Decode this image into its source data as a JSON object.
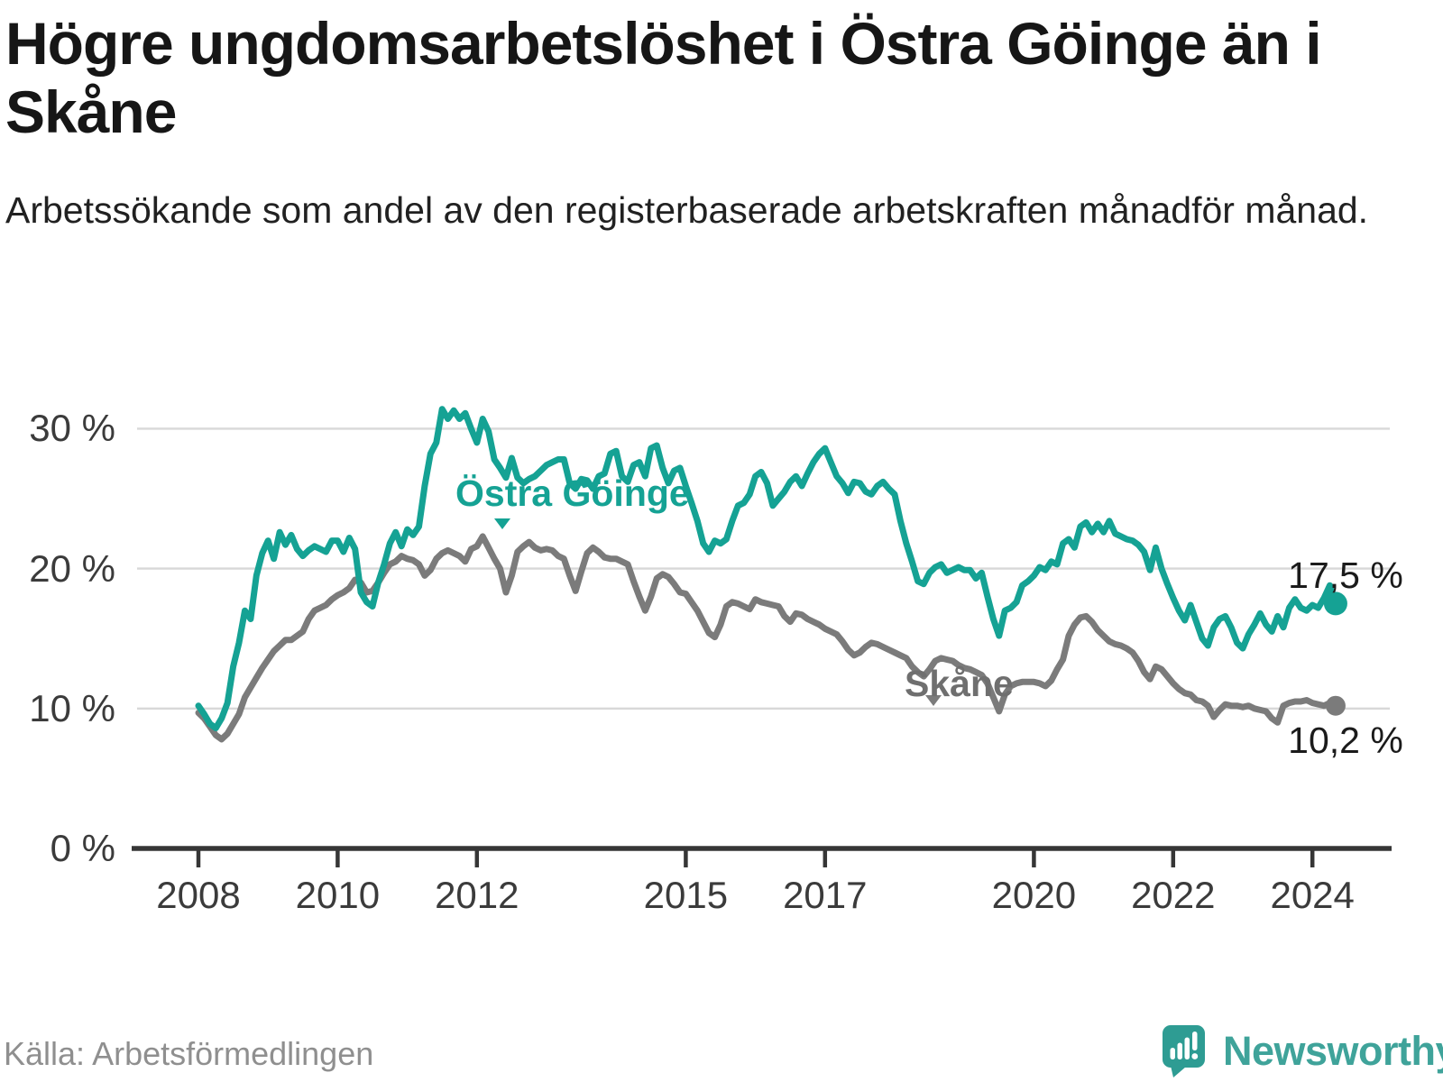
{
  "header": {
    "title_lines": [
      "Högre ungdomsarbetslöshet i Östra Göinge än i",
      "Skåne"
    ],
    "subtitle_lines": [
      "Arbetssökande som andel av den registerbaserade arbetskraften månad",
      "för månad."
    ]
  },
  "chart_data": {
    "type": "line",
    "title": "Högre ungdomsarbetslöshet i Östra Göinge än i Skåne",
    "subtitle": "Arbetssökande som andel av den registerbaserade arbetskraften månad för månad.",
    "unit": "%",
    "frequency": "monthly",
    "start": "2008-01",
    "end": "2024-05",
    "grid": true,
    "legend_position": "inline-labels",
    "x_axis": {
      "ticks": [
        {
          "year": 2008,
          "label": "2008"
        },
        {
          "year": 2010,
          "label": "2010"
        },
        {
          "year": 2012,
          "label": "2012"
        },
        {
          "year": 2015,
          "label": "2015"
        },
        {
          "year": 2017,
          "label": "2017"
        },
        {
          "year": 2020,
          "label": "2020"
        },
        {
          "year": 2022,
          "label": "2022"
        },
        {
          "year": 2024,
          "label": "2024"
        }
      ]
    },
    "y_axis": {
      "ticks": [
        {
          "value": 30,
          "label": "30 %"
        },
        {
          "value": 20,
          "label": "20 %"
        },
        {
          "value": 10,
          "label": "10 %"
        },
        {
          "value": 0,
          "label": "0 %"
        }
      ],
      "gridline_values": [
        30,
        20,
        10
      ],
      "ylim": [
        0,
        32.5
      ]
    },
    "series": [
      {
        "name": "Östra Göinge",
        "color": "#15A294",
        "end_label": "17,5 %",
        "end_value": 17.5,
        "values": [
          10.2,
          9.6,
          8.9,
          8.6,
          9.3,
          10.4,
          13.0,
          14.7,
          17.0,
          16.4,
          19.5,
          21.1,
          22.0,
          20.7,
          22.6,
          21.7,
          22.4,
          21.4,
          20.9,
          21.3,
          21.6,
          21.4,
          21.2,
          22.0,
          22.0,
          21.2,
          22.2,
          21.4,
          18.3,
          17.6,
          17.3,
          19.0,
          20.3,
          21.8,
          22.6,
          21.6,
          22.8,
          22.4,
          23.0,
          25.9,
          28.2,
          29.0,
          31.4,
          30.7,
          31.3,
          30.7,
          31.1,
          30.0,
          29.0,
          30.7,
          29.8,
          27.8,
          27.2,
          26.5,
          27.9,
          26.5,
          26.1,
          26.4,
          26.6,
          27.0,
          27.4,
          27.6,
          27.8,
          27.8,
          26.1,
          25.7,
          26.4,
          26.3,
          25.7,
          26.6,
          26.8,
          28.2,
          28.4,
          26.6,
          26.2,
          27.4,
          27.6,
          26.6,
          28.6,
          28.8,
          27.2,
          26.1,
          27.0,
          27.2,
          25.9,
          24.7,
          23.4,
          21.8,
          21.2,
          22.0,
          21.8,
          22.1,
          23.4,
          24.5,
          24.7,
          25.3,
          26.6,
          26.9,
          26.1,
          24.5,
          25.0,
          25.5,
          26.2,
          26.6,
          25.9,
          26.8,
          27.6,
          28.2,
          28.6,
          27.6,
          26.6,
          26.1,
          25.4,
          26.2,
          26.1,
          25.5,
          25.3,
          25.9,
          26.2,
          25.7,
          25.3,
          23.4,
          21.8,
          20.5,
          19.1,
          18.9,
          19.7,
          20.1,
          20.3,
          19.7,
          19.9,
          20.1,
          19.9,
          19.9,
          19.3,
          19.7,
          18.0,
          16.4,
          15.2,
          17.0,
          17.2,
          17.6,
          18.8,
          19.1,
          19.5,
          20.1,
          19.9,
          20.5,
          20.3,
          21.8,
          22.1,
          21.5,
          23.0,
          23.3,
          22.6,
          23.2,
          22.6,
          23.4,
          22.5,
          22.3,
          22.1,
          22.0,
          21.7,
          21.2,
          19.9,
          21.5,
          20.0,
          18.9,
          17.9,
          17.0,
          16.3,
          17.4,
          16.2,
          15.0,
          14.5,
          15.8,
          16.4,
          16.6,
          15.8,
          14.7,
          14.3,
          15.3,
          16.0,
          16.8,
          16.0,
          15.5,
          16.6,
          15.8,
          17.2,
          17.8,
          17.2,
          17.0,
          17.4,
          17.2,
          17.9,
          18.8,
          17.5
        ]
      },
      {
        "name": "Skåne",
        "color": "#7B7B7B",
        "end_label": "10,2 %",
        "end_value": 10.2,
        "values": [
          9.7,
          9.3,
          8.7,
          8.1,
          7.8,
          8.2,
          8.9,
          9.6,
          10.8,
          11.5,
          12.2,
          12.9,
          13.5,
          14.1,
          14.5,
          14.9,
          14.9,
          15.2,
          15.5,
          16.4,
          17.0,
          17.2,
          17.4,
          17.8,
          18.1,
          18.3,
          18.6,
          19.2,
          19.0,
          18.3,
          18.4,
          19.0,
          19.7,
          20.3,
          20.5,
          20.9,
          20.7,
          20.6,
          20.3,
          19.5,
          19.9,
          20.7,
          21.1,
          21.3,
          21.1,
          20.9,
          20.5,
          21.4,
          21.6,
          22.3,
          21.5,
          20.7,
          20.0,
          18.3,
          19.5,
          21.2,
          21.6,
          21.9,
          21.5,
          21.3,
          21.4,
          21.3,
          20.9,
          20.7,
          19.5,
          18.4,
          19.8,
          21.1,
          21.5,
          21.2,
          20.8,
          20.7,
          20.7,
          20.5,
          20.3,
          19.1,
          18.0,
          17.0,
          18.0,
          19.3,
          19.6,
          19.4,
          18.9,
          18.3,
          18.2,
          17.6,
          17.0,
          16.2,
          15.4,
          15.1,
          16.0,
          17.3,
          17.6,
          17.5,
          17.3,
          17.1,
          17.8,
          17.6,
          17.5,
          17.4,
          17.3,
          16.6,
          16.2,
          16.8,
          16.7,
          16.4,
          16.2,
          16.0,
          15.7,
          15.5,
          15.3,
          14.8,
          14.2,
          13.8,
          14.0,
          14.4,
          14.7,
          14.6,
          14.4,
          14.2,
          14.0,
          13.8,
          13.6,
          13.0,
          12.6,
          12.3,
          12.8,
          13.4,
          13.6,
          13.5,
          13.4,
          13.1,
          12.9,
          12.8,
          12.6,
          12.4,
          11.8,
          10.8,
          9.8,
          11.0,
          11.6,
          11.8,
          11.9,
          11.9,
          11.9,
          11.8,
          11.6,
          12.0,
          12.8,
          13.5,
          15.2,
          16.0,
          16.5,
          16.6,
          16.2,
          15.6,
          15.2,
          14.8,
          14.6,
          14.5,
          14.3,
          14.0,
          13.4,
          12.6,
          12.1,
          13.0,
          12.8,
          12.3,
          11.8,
          11.4,
          11.1,
          11.0,
          10.6,
          10.5,
          10.2,
          9.4,
          9.9,
          10.3,
          10.2,
          10.2,
          10.1,
          10.2,
          10.0,
          9.9,
          9.8,
          9.3,
          9.0,
          10.2,
          10.4,
          10.5,
          10.5,
          10.6,
          10.4,
          10.3,
          10.2,
          10.4,
          10.2
        ]
      }
    ]
  },
  "footer": {
    "source": "Källa: Arbetsförmedlingen",
    "brand": "Newsworthy"
  },
  "colors": {
    "accent_teal": "#15A294",
    "line_gray": "#7B7B7B",
    "grid": "#D8D8D8",
    "axis": "#363636",
    "text": "#1A1A1A",
    "muted": "#8F8F8F",
    "brand_teal": "#2E9C93"
  }
}
